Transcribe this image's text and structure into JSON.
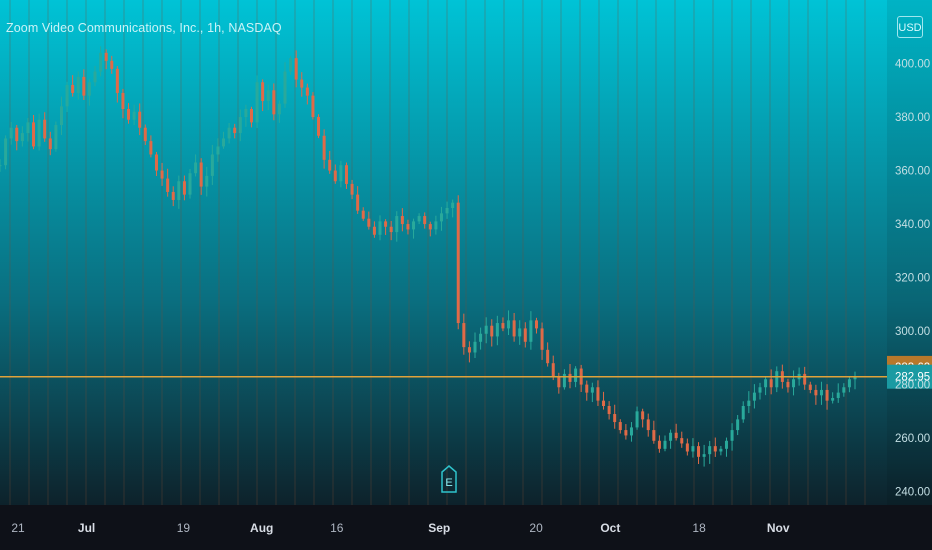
{
  "title": "Zoom Video Communications, Inc., 1h, NASDAQ",
  "currency_button": "USD",
  "earnings_marker": "E",
  "price_badges": {
    "high": "283.62",
    "last": "282.95"
  },
  "colors": {
    "bg_top": "#00c3d6",
    "bg_bottom": "#0e1118",
    "grid": "#7a4a33",
    "price_line": "#e0a23a",
    "candle_up": "#29a99b",
    "candle_down": "#e06a47",
    "badge_high": "#b8782b",
    "badge_last": "#1a9aa2"
  },
  "chart_data": {
    "type": "line",
    "ylim": [
      235,
      420
    ],
    "y_ticks": [
      240,
      260,
      280,
      300,
      320,
      340,
      360,
      380,
      400
    ],
    "y_tick_labels": [
      "240.00",
      "260.00",
      "280.00",
      "300.00",
      "320.00",
      "340.00",
      "360.00",
      "380.00",
      "400.00"
    ],
    "x_ticks": [
      {
        "label": "21",
        "pos": 0.0,
        "major": false
      },
      {
        "label": "Jul",
        "pos": 0.085,
        "major": true
      },
      {
        "label": "19",
        "pos": 0.205,
        "major": false
      },
      {
        "label": "Aug",
        "pos": 0.302,
        "major": true
      },
      {
        "label": "16",
        "pos": 0.395,
        "major": false
      },
      {
        "label": "Sep",
        "pos": 0.522,
        "major": true
      },
      {
        "label": "20",
        "pos": 0.642,
        "major": false
      },
      {
        "label": "Oct",
        "pos": 0.734,
        "major": true
      },
      {
        "label": "18",
        "pos": 0.844,
        "major": false
      },
      {
        "label": "Nov",
        "pos": 0.942,
        "major": true
      }
    ],
    "series": [
      {
        "values": [
          362,
          372,
          376,
          371,
          374,
          378,
          369,
          379,
          372,
          368,
          377,
          384,
          392,
          389,
          395,
          388,
          393,
          397,
          404,
          401,
          398,
          389,
          383,
          379,
          382,
          376,
          371,
          366,
          360,
          357,
          352,
          349,
          356,
          351,
          359,
          363,
          354,
          358,
          366,
          369,
          372,
          376,
          374,
          380,
          383,
          378,
          393,
          386,
          390,
          381,
          385,
          397,
          402,
          394,
          391,
          388,
          380,
          373,
          364,
          360,
          356,
          362,
          355,
          351,
          345,
          342,
          339,
          336,
          341,
          339,
          337,
          343,
          340,
          338,
          341,
          343,
          340,
          338,
          341,
          344,
          346,
          348,
          303,
          294,
          292,
          296,
          299,
          302,
          298,
          303,
          301,
          304,
          298,
          301,
          296,
          304,
          301,
          293,
          288,
          283,
          279,
          284,
          281,
          286,
          280,
          277,
          279,
          274,
          272,
          269,
          266,
          263,
          261,
          264,
          270,
          267,
          263,
          259,
          256,
          259,
          262,
          260,
          258,
          255,
          257,
          253,
          254,
          257,
          255,
          256,
          259,
          263,
          267,
          272,
          274,
          277,
          279,
          282,
          279,
          285,
          281,
          279,
          282,
          284,
          280,
          278,
          276,
          278,
          274,
          275,
          277,
          279,
          282,
          283
        ]
      }
    ]
  }
}
